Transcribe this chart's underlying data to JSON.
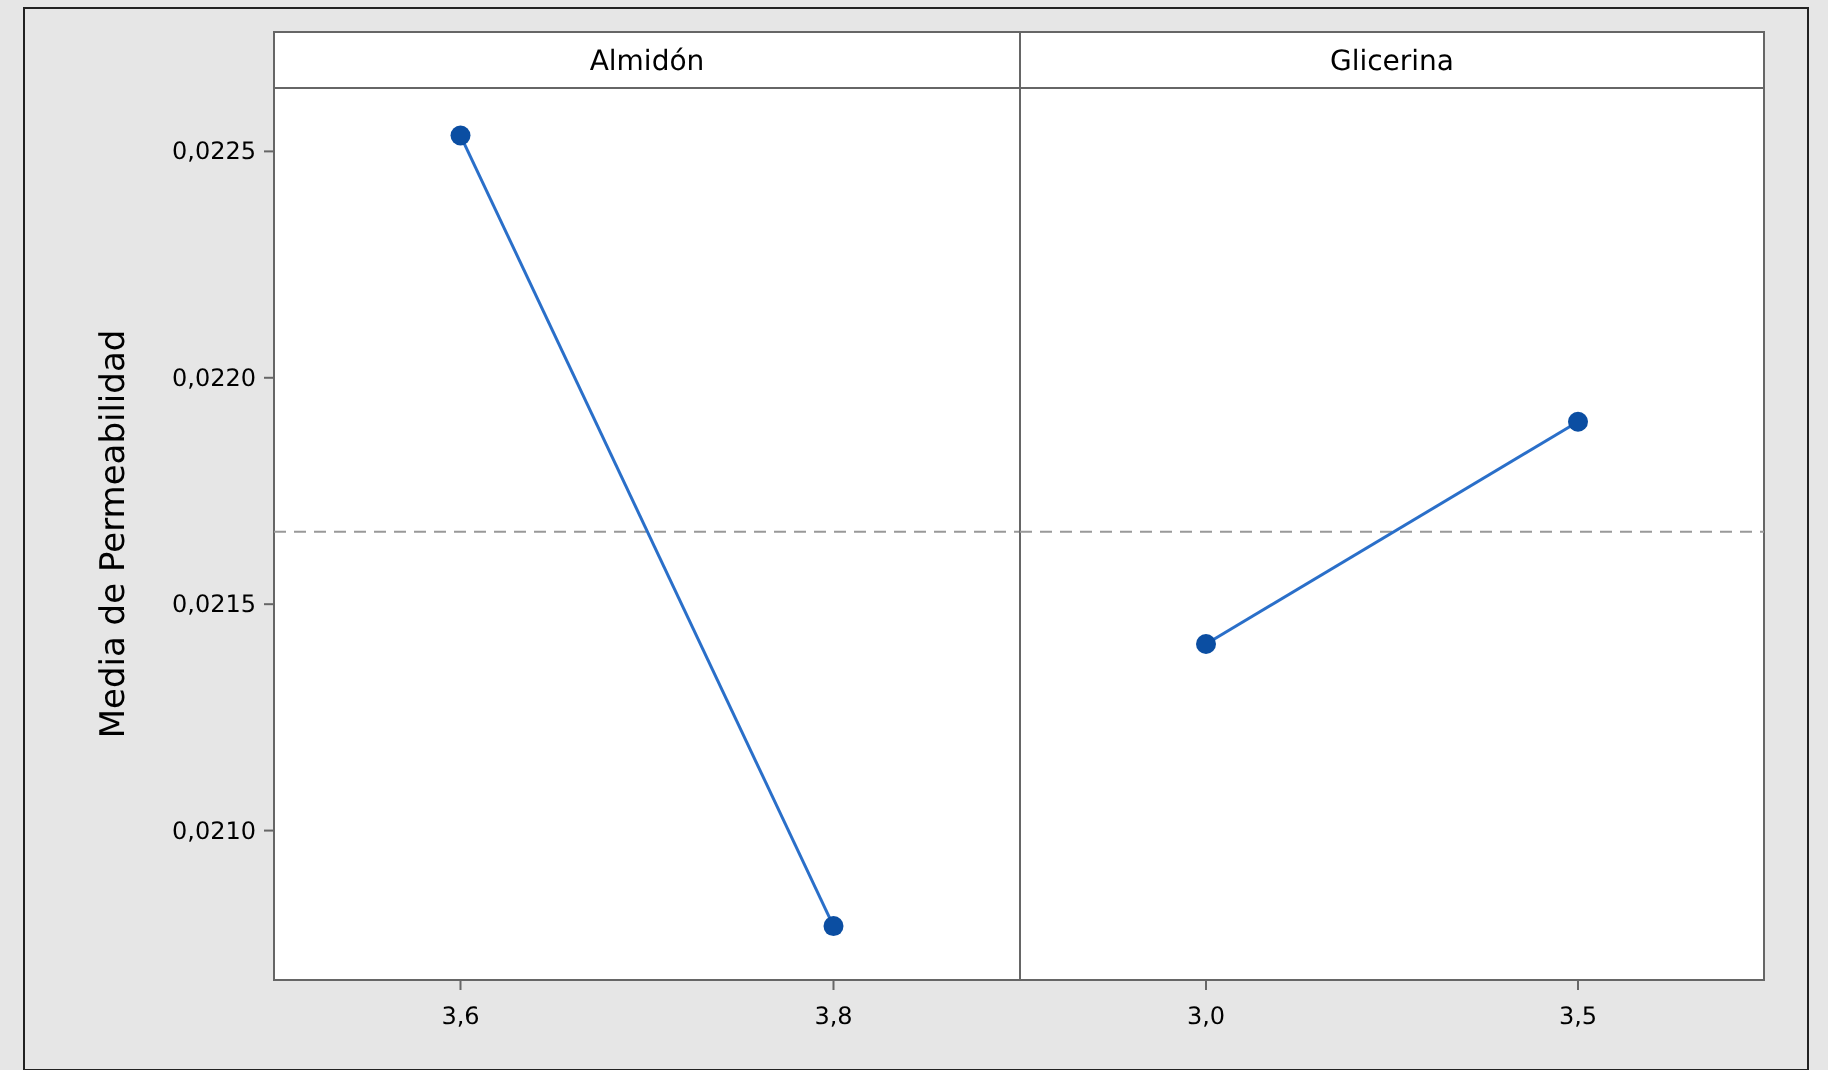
{
  "chart_data": [
    {
      "type": "line",
      "title": "Almidón",
      "ylabel": "Media de Permeabilidad",
      "categories": [
        "3,6",
        "3,8"
      ],
      "series": [
        {
          "color": "#2a6fc9",
          "values": [
            0.022535,
            0.020789
          ]
        }
      ],
      "ylim": [
        0.02067,
        0.02264
      ],
      "yticks": [
        {
          "value": 0.021,
          "label": "0,0210"
        },
        {
          "value": 0.0215,
          "label": "0,0215"
        },
        {
          "value": 0.022,
          "label": "0,0220"
        },
        {
          "value": 0.0225,
          "label": "0,0225"
        }
      ],
      "ref_lines": [
        {
          "axis": "y",
          "value": 0.02166,
          "color": "#999999",
          "line_style": "dashed"
        }
      ],
      "marker": "circle",
      "line_style": "solid",
      "grid": false
    },
    {
      "type": "line",
      "title": "Glicerina",
      "categories": [
        "3,0",
        "3,5"
      ],
      "series": [
        {
          "color": "#2a6fc9",
          "values": [
            0.021412,
            0.021903
          ]
        }
      ],
      "ylim": [
        0.02067,
        0.02264
      ],
      "ref_lines": [
        {
          "axis": "y",
          "value": 0.02166,
          "color": "#999999",
          "line_style": "dashed"
        }
      ],
      "marker": "circle",
      "line_style": "solid",
      "grid": false,
      "tick_labels": "x"
    }
  ]
}
